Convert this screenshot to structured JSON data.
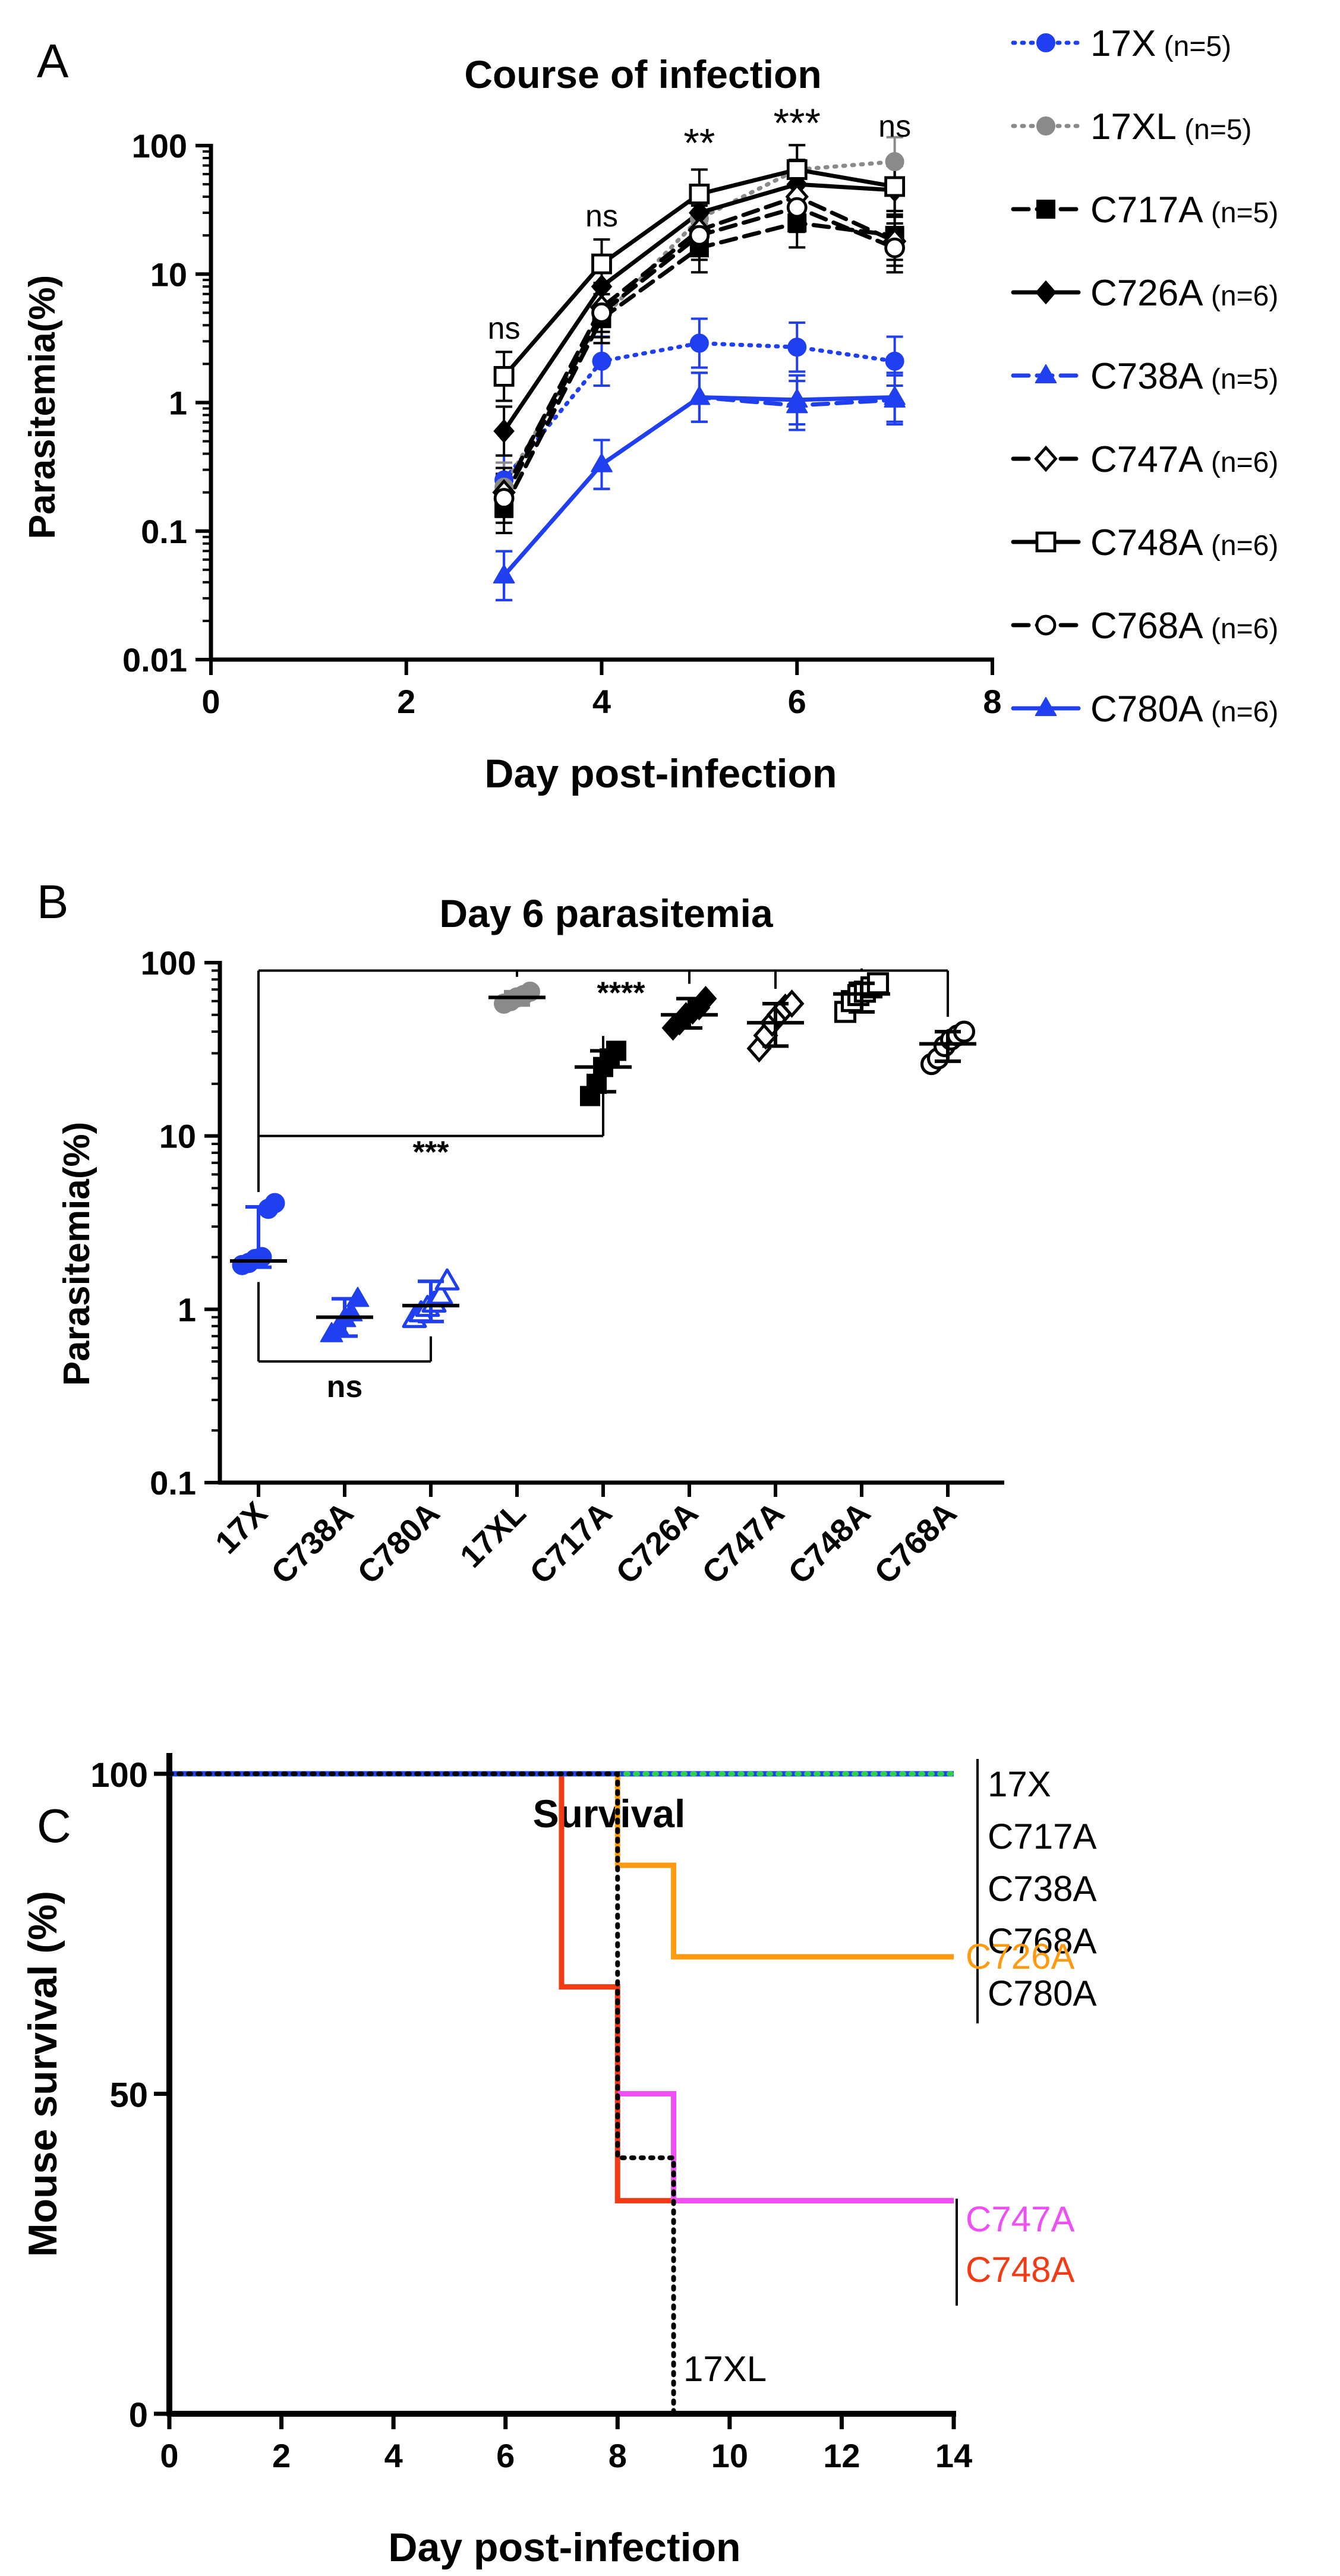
{
  "chart_data": [
    {
      "panel": "A",
      "type": "line",
      "title": "Course of infection",
      "xlabel": "Day post-infection",
      "ylabel": "Parasitemia(%)",
      "xlim": [
        0,
        8
      ],
      "ylim": [
        0.01,
        100
      ],
      "yscale": "log",
      "x_ticks": [
        "0",
        "2",
        "4",
        "6",
        "8"
      ],
      "y_ticks": [
        "0.01",
        "0.1",
        "1",
        "10",
        "100"
      ],
      "x": [
        3,
        4,
        5,
        6,
        7
      ],
      "legend_position": "right",
      "series": [
        {
          "name": "17X",
          "n": "(n=5)",
          "color": "#1f3ff0",
          "dash": "dot",
          "marker": "circle",
          "values": [
            0.25,
            2.1,
            2.9,
            2.7,
            2.1
          ]
        },
        {
          "name": "17XL",
          "n": "(n=5)",
          "color": "#8a8a8a",
          "dash": "dot",
          "marker": "circle",
          "values": [
            0.22,
            4.5,
            27,
            65,
            75
          ]
        },
        {
          "name": "C717A",
          "n": "(n=5)",
          "color": "#000000",
          "dash": "dash",
          "marker": "square",
          "values": [
            0.15,
            4.5,
            16,
            25,
            20
          ]
        },
        {
          "name": "C726A",
          "n": "(n=6)",
          "color": "#000000",
          "dash": "solid",
          "marker": "diamond",
          "values": [
            0.6,
            8,
            30,
            50,
            45
          ]
        },
        {
          "name": "C738A",
          "n": "(n=5)",
          "color": "#1f3ff0",
          "dash": "dash",
          "marker": "triangle",
          "values": [
            0.045,
            0.33,
            1.1,
            0.95,
            1.05
          ]
        },
        {
          "name": "C747A",
          "n": "(n=6)",
          "color": "#000000",
          "dash": "dash",
          "marker": "diamond-open",
          "values": [
            0.2,
            5.5,
            22,
            40,
            18
          ]
        },
        {
          "name": "C748A",
          "n": "(n=6)",
          "color": "#000000",
          "dash": "solid",
          "marker": "square-open",
          "values": [
            1.6,
            12,
            42,
            65,
            48
          ]
        },
        {
          "name": "C768A",
          "n": "(n=6)",
          "color": "#000000",
          "dash": "dash",
          "marker": "circle-open",
          "values": [
            0.18,
            5,
            20,
            33,
            16
          ]
        },
        {
          "name": "C780A",
          "n": "(n=6)",
          "color": "#1f3ff0",
          "dash": "solid",
          "marker": "triangle",
          "values": [
            0.045,
            0.33,
            1.1,
            1.05,
            1.1
          ]
        }
      ],
      "annotations": [
        {
          "x": 3,
          "text": "ns"
        },
        {
          "x": 4,
          "text": "ns"
        },
        {
          "x": 5,
          "text": "**"
        },
        {
          "x": 6,
          "text": "***"
        },
        {
          "x": 7,
          "text": "ns"
        }
      ]
    },
    {
      "panel": "B",
      "type": "scatter",
      "title": "Day 6 parasitemia",
      "ylabel": "Parasitemia(%)",
      "ylim": [
        0.1,
        100
      ],
      "yscale": "log",
      "y_ticks": [
        "0.1",
        "1",
        "10",
        "100"
      ],
      "categories": [
        "17X",
        "C738A",
        "C780A",
        "17XL",
        "C717A",
        "C726A",
        "C747A",
        "C748A",
        "C768A"
      ],
      "groups": [
        {
          "category": "17X",
          "color": "#1f3ff0",
          "marker": "circle",
          "median": 1.9,
          "err": [
            1.75,
            3.9
          ],
          "points": [
            1.8,
            1.85,
            1.95,
            2.0,
            3.8,
            4.1
          ]
        },
        {
          "category": "C738A",
          "color": "#1f3ff0",
          "marker": "triangle",
          "median": 0.9,
          "err": [
            0.7,
            1.15
          ],
          "points": [
            0.72,
            0.78,
            0.88,
            0.95,
            1.15
          ]
        },
        {
          "category": "C780A",
          "color": "#1f3ff0",
          "marker": "triangle-open",
          "median": 1.05,
          "err": [
            0.85,
            1.45
          ],
          "points": [
            0.88,
            0.95,
            1.02,
            1.08,
            1.2,
            1.45
          ]
        },
        {
          "category": "17XL",
          "color": "#8a8a8a",
          "marker": "circle",
          "median": 63,
          "err": [
            57,
            68
          ],
          "points": [
            58,
            60,
            63,
            65,
            68
          ]
        },
        {
          "category": "C717A",
          "color": "#000000",
          "marker": "square",
          "median": 25,
          "err": [
            18,
            31
          ],
          "points": [
            17,
            20,
            25,
            28,
            31
          ]
        },
        {
          "category": "C726A",
          "color": "#000000",
          "marker": "diamond",
          "median": 50,
          "err": [
            42,
            62
          ],
          "points": [
            42,
            45,
            50,
            52,
            55,
            62
          ]
        },
        {
          "category": "C747A",
          "color": "#000000",
          "marker": "diamond-open",
          "median": 45,
          "err": [
            33,
            58
          ],
          "points": [
            32,
            38,
            45,
            50,
            55,
            58
          ]
        },
        {
          "category": "C748A",
          "color": "#000000",
          "marker": "square-open",
          "median": 66,
          "err": [
            52,
            76
          ],
          "points": [
            52,
            60,
            65,
            68,
            72,
            76
          ]
        },
        {
          "category": "C768A",
          "color": "#000000",
          "marker": "circle-open",
          "median": 34,
          "err": [
            27,
            40
          ],
          "points": [
            26,
            28,
            33,
            36,
            38,
            40
          ]
        }
      ],
      "brackets": [
        {
          "from": "17X",
          "to": [
            "17XL",
            "C726A",
            "C747A",
            "C748A",
            "C768A"
          ],
          "y": 90,
          "label": "****"
        },
        {
          "from": "17X",
          "to": [
            "C717A"
          ],
          "y": 10,
          "label": "***"
        },
        {
          "from": "17X",
          "to": [
            "C780A"
          ],
          "y": 0.5,
          "label": "ns"
        }
      ]
    },
    {
      "panel": "C",
      "type": "line",
      "step": true,
      "title": "Survival",
      "xlabel": "Day post-infection",
      "ylabel": "Mouse survival (%)",
      "xlim": [
        0,
        14
      ],
      "ylim": [
        0,
        100
      ],
      "x_ticks": [
        "0",
        "2",
        "4",
        "6",
        "8",
        "10",
        "12",
        "14"
      ],
      "y_ticks": [
        "0",
        "50",
        "100"
      ],
      "series": [
        {
          "name": "C748A",
          "color": "#f23a14",
          "dash": "solid",
          "points": [
            [
              0,
              100
            ],
            [
              7,
              100
            ],
            [
              7,
              66.7
            ],
            [
              8,
              66.7
            ],
            [
              8,
              33.3
            ],
            [
              14,
              33.3
            ]
          ]
        },
        {
          "name": "C747A",
          "color": "#f04ef5",
          "dash": "solid",
          "points": [
            [
              8,
              50
            ],
            [
              9,
              50
            ],
            [
              9,
              33.3
            ],
            [
              14,
              33.3
            ]
          ]
        },
        {
          "name": "C726A",
          "color": "#ff9a10",
          "dash": "solid",
          "points": [
            [
              8,
              100
            ],
            [
              8,
              85.7
            ],
            [
              9,
              85.7
            ],
            [
              9,
              71.4
            ],
            [
              14,
              71.4
            ]
          ]
        },
        {
          "name": "17X, C717A, C738A, C768A, C780A",
          "color": "#1f3ff0",
          "dash": "solid",
          "points": [
            [
              0,
              100
            ],
            [
              14,
              100
            ]
          ]
        },
        {
          "name": "17X, C717A, C738A, C768A, C780A",
          "color": "#2fd04a",
          "dash": "dot",
          "points": [
            [
              0,
              100
            ],
            [
              14,
              100
            ]
          ]
        },
        {
          "name": "17XL",
          "color": "#000000",
          "dash": "dot",
          "points": [
            [
              0,
              100
            ],
            [
              8,
              100
            ],
            [
              8,
              40
            ],
            [
              9,
              40
            ],
            [
              9,
              0
            ]
          ]
        }
      ],
      "labels": {
        "group_top": [
          "17X",
          "C717A",
          "C738A",
          "C768A",
          "C780A"
        ],
        "c726a": "C726A",
        "c747a": "C747A",
        "c748a": "C748A",
        "xl": "17XL"
      }
    }
  ],
  "panel_letters": [
    "A",
    "B",
    "C"
  ]
}
